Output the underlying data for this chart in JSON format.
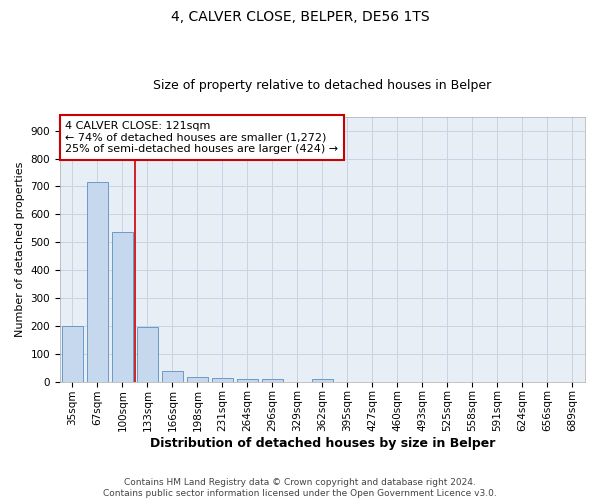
{
  "title1": "4, CALVER CLOSE, BELPER, DE56 1TS",
  "title2": "Size of property relative to detached houses in Belper",
  "xlabel": "Distribution of detached houses by size in Belper",
  "ylabel": "Number of detached properties",
  "categories": [
    "35sqm",
    "67sqm",
    "100sqm",
    "133sqm",
    "166sqm",
    "198sqm",
    "231sqm",
    "264sqm",
    "296sqm",
    "329sqm",
    "362sqm",
    "395sqm",
    "427sqm",
    "460sqm",
    "493sqm",
    "525sqm",
    "558sqm",
    "591sqm",
    "624sqm",
    "656sqm",
    "689sqm"
  ],
  "values": [
    200,
    715,
    535,
    195,
    40,
    17,
    13,
    10,
    8,
    0,
    8,
    0,
    0,
    0,
    0,
    0,
    0,
    0,
    0,
    0,
    0
  ],
  "bar_color": "#c5d8ed",
  "bar_edge_color": "#5b8fbe",
  "grid_color": "#c8d4e3",
  "background_color": "#e8eef6",
  "vline_x": 2.5,
  "vline_color": "#cc0000",
  "annotation_text": "4 CALVER CLOSE: 121sqm\n← 74% of detached houses are smaller (1,272)\n25% of semi-detached houses are larger (424) →",
  "annotation_box_color": "#ffffff",
  "annotation_box_edge": "#cc0000",
  "ylim": [
    0,
    950
  ],
  "yticks": [
    0,
    100,
    200,
    300,
    400,
    500,
    600,
    700,
    800,
    900
  ],
  "footer1": "Contains HM Land Registry data © Crown copyright and database right 2024.",
  "footer2": "Contains public sector information licensed under the Open Government Licence v3.0.",
  "title1_fontsize": 10,
  "title2_fontsize": 9,
  "xlabel_fontsize": 9,
  "ylabel_fontsize": 8,
  "tick_fontsize": 7.5,
  "annotation_fontsize": 8,
  "footer_fontsize": 6.5
}
